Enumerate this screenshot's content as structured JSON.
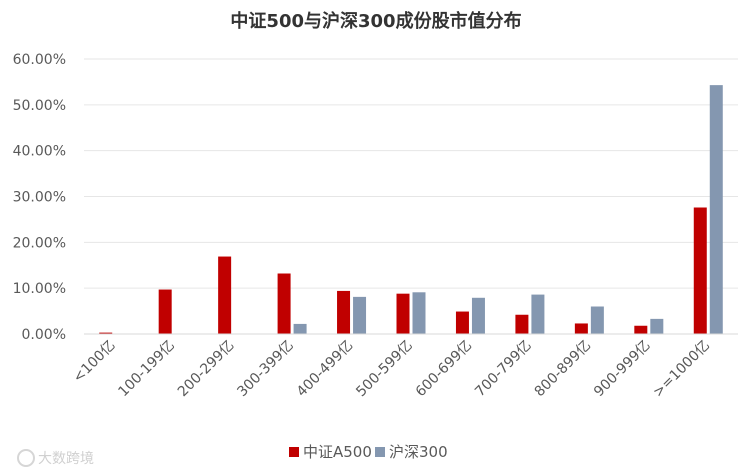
{
  "chart_data": {
    "type": "bar",
    "title": "中证500与沪深300成份股市值分布",
    "categories": [
      "<100亿",
      "100-199亿",
      "200-299亿",
      "300-399亿",
      "400-499亿",
      "500-599亿",
      "600-699亿",
      "700-799亿",
      "800-899亿",
      "900-999亿",
      ">=1000亿"
    ],
    "series": [
      {
        "name": "中证A500",
        "color": "#c00000",
        "values": [
          0.3,
          9.7,
          16.9,
          13.2,
          9.4,
          8.8,
          4.9,
          4.2,
          2.3,
          1.8,
          27.6
        ]
      },
      {
        "name": "沪深300",
        "color": "#8497b0",
        "values": [
          0.0,
          0.0,
          0.0,
          2.2,
          8.1,
          9.1,
          7.9,
          8.6,
          6.0,
          3.3,
          54.3
        ]
      }
    ],
    "yticks": [
      "0.00%",
      "10.00%",
      "20.00%",
      "30.00%",
      "40.00%",
      "50.00%",
      "60.00%"
    ],
    "ylim": [
      0,
      60
    ],
    "grid": true,
    "legend_position": "bottom"
  },
  "watermark": "大数跨境"
}
